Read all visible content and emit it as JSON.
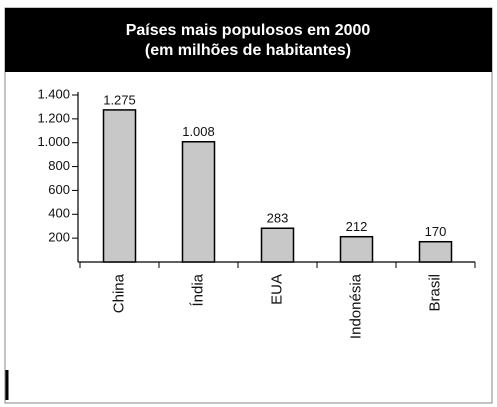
{
  "chart_data": {
    "type": "bar",
    "title": "Países mais populosos em 2000",
    "subtitle": "(em milhões de habitantes)",
    "categories": [
      "China",
      "Índia",
      "EUA",
      "Indonésia",
      "Brasil"
    ],
    "values": [
      1275,
      1008,
      283,
      212,
      170
    ],
    "value_labels": [
      "1.275",
      "1.008",
      "283",
      "212",
      "170"
    ],
    "color": "#c8c8c8",
    "ylim": [
      0,
      1400
    ],
    "yticks": [
      200,
      400,
      600,
      800,
      {
        "value": 1000,
        "label": "1.000"
      },
      {
        "value": 1200,
        "label": "1.200"
      },
      {
        "value": 1400,
        "label": "1.400"
      }
    ],
    "grid": false
  }
}
